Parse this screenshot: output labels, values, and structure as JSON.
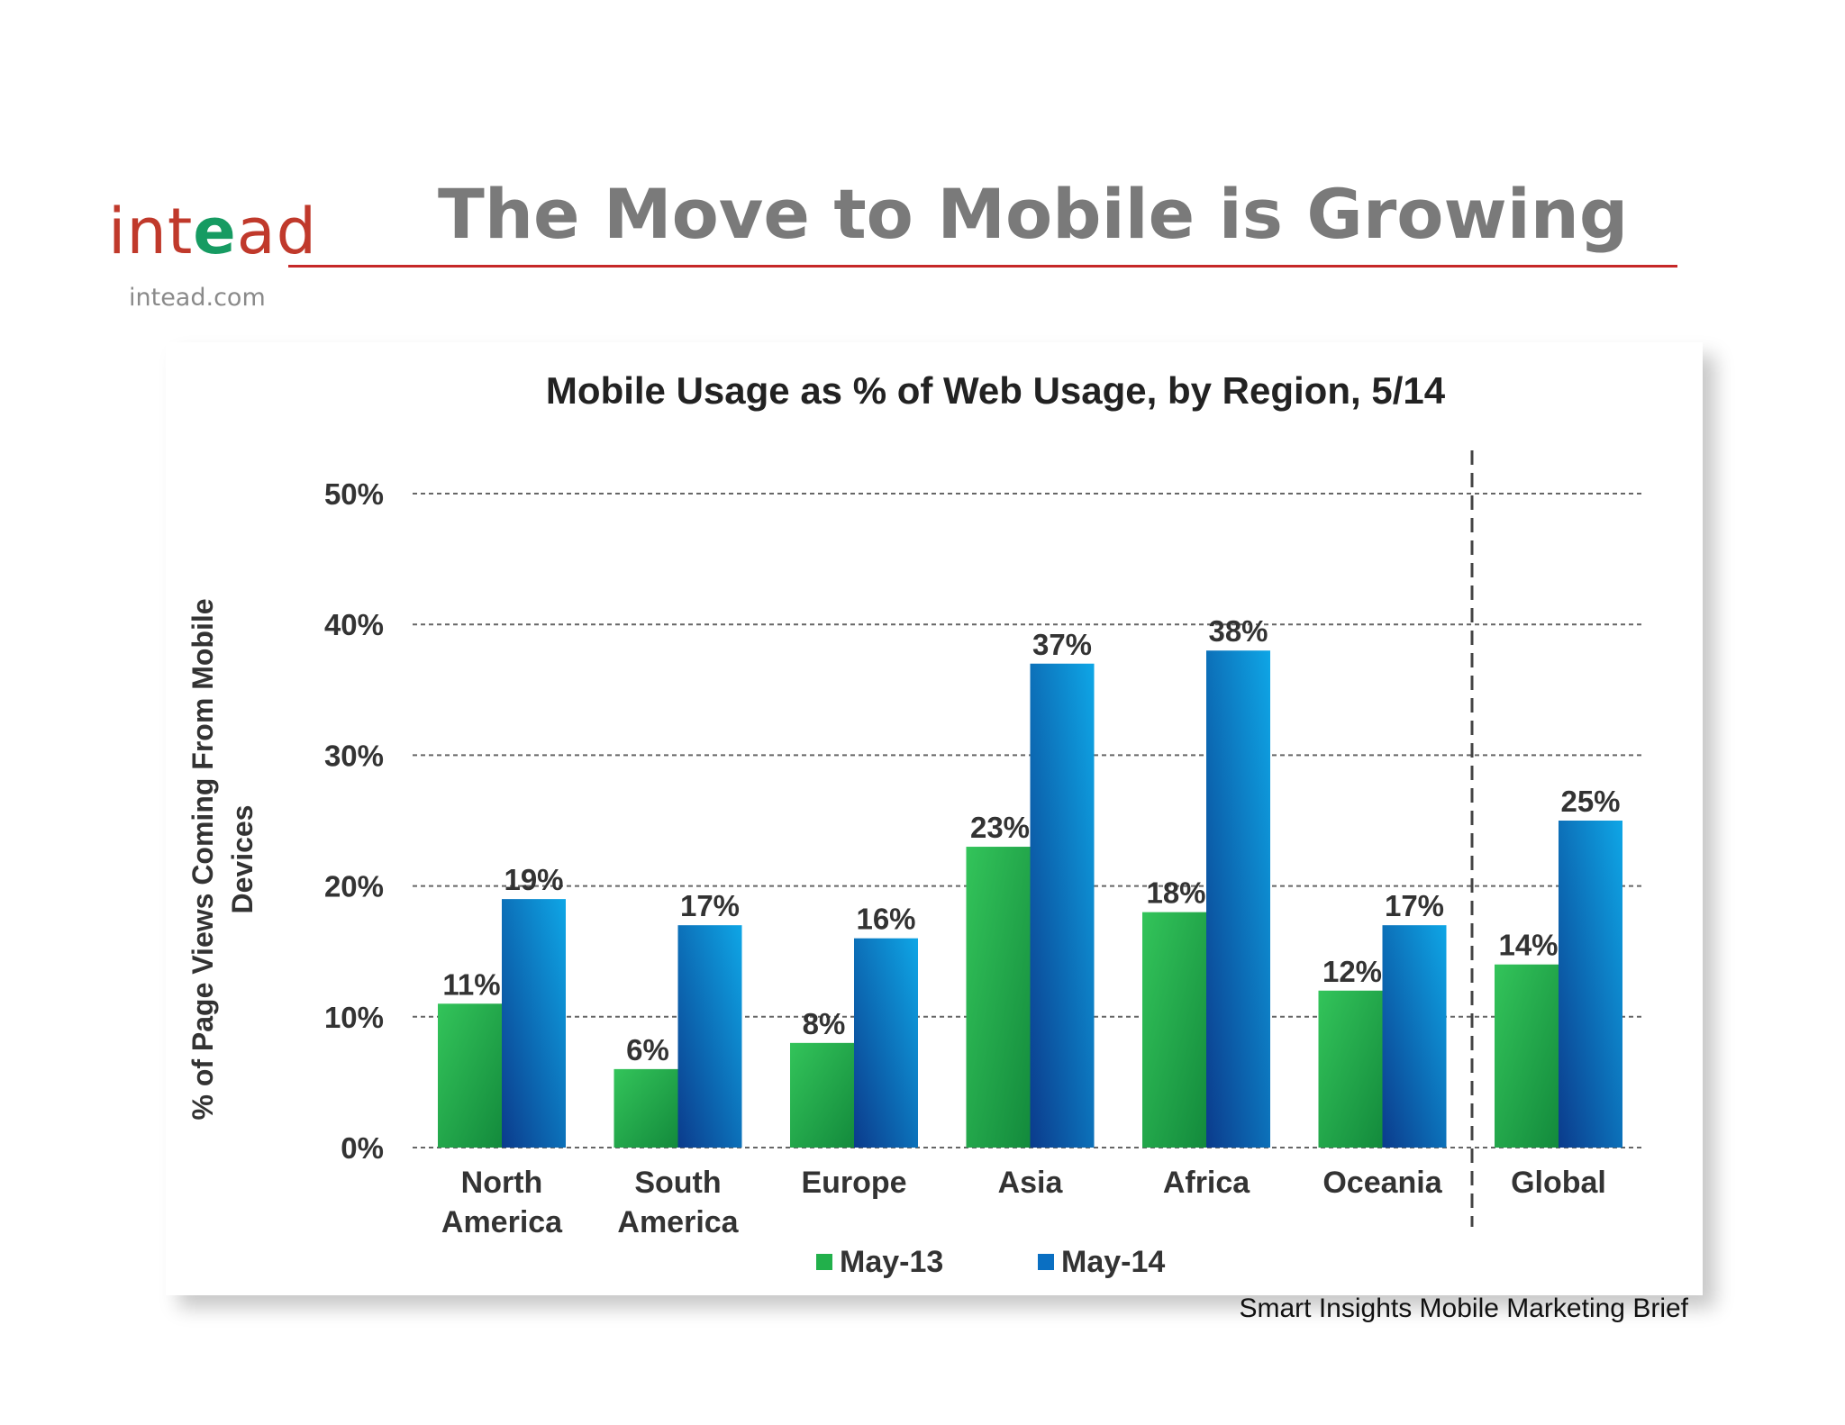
{
  "header": {
    "logo_text": "intead",
    "logo_prefix": "int",
    "logo_accent": "e",
    "logo_suffix": "ad",
    "site": "intead.com",
    "title": "The Move to Mobile is Growing"
  },
  "colors": {
    "logo": "#c0392b",
    "logo_accent": "#169b62",
    "rule": "#c62828",
    "title": "#7a7a7a",
    "may13": "#22b04b",
    "may14": "#0a6fc2"
  },
  "chart_data": {
    "type": "bar",
    "title": "Mobile Usage as % of Web Usage, by Region, 5/14",
    "ylabel": "% of Page Views Coming From Mobile Devices",
    "ylabel_lines": [
      "% of Page Views Coming From Mobile",
      "Devices"
    ],
    "xlabel": "",
    "ylim": [
      0,
      50
    ],
    "yticks": [
      "0%",
      "10%",
      "20%",
      "30%",
      "40%",
      "50%"
    ],
    "grid": true,
    "legend": "bottom",
    "categories": [
      "North America",
      "South America",
      "Europe",
      "Asia",
      "Africa",
      "Oceania",
      "Global"
    ],
    "category_lines": [
      [
        "North",
        "America"
      ],
      [
        "South",
        "America"
      ],
      [
        "Europe"
      ],
      [
        "Asia"
      ],
      [
        "Africa"
      ],
      [
        "Oceania"
      ],
      [
        "Global"
      ]
    ],
    "series": [
      {
        "name": "May-13",
        "values": [
          11,
          6,
          8,
          23,
          18,
          12,
          14
        ],
        "labels": [
          "11%",
          "6%",
          "8%",
          "23%",
          "18%",
          "12%",
          "14%"
        ]
      },
      {
        "name": "May-14",
        "values": [
          19,
          17,
          16,
          37,
          38,
          17,
          25
        ],
        "labels": [
          "19%",
          "17%",
          "16%",
          "37%",
          "38%",
          "17%",
          "25%"
        ]
      }
    ]
  },
  "source": "Smart Insights Mobile Marketing Brief"
}
